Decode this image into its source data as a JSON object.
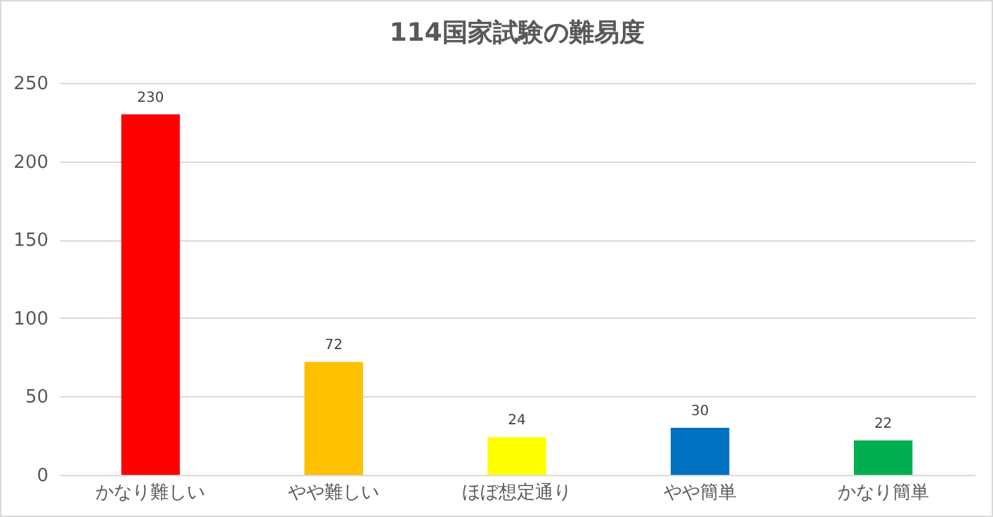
{
  "chart_data": {
    "type": "bar",
    "title": "114国家試験の難易度",
    "categories": [
      "かなり難しい",
      "やや難しい",
      "ほぼ想定通り",
      "やや簡単",
      "かなり簡単"
    ],
    "values": [
      230,
      72,
      24,
      30,
      22
    ],
    "colors": [
      "#ff0000",
      "#ffc000",
      "#ffff00",
      "#0070c0",
      "#00b050"
    ],
    "ylim": [
      0,
      250
    ],
    "yticks": [
      0,
      50,
      100,
      150,
      200,
      250
    ],
    "grid": "y",
    "data_labels": true
  }
}
